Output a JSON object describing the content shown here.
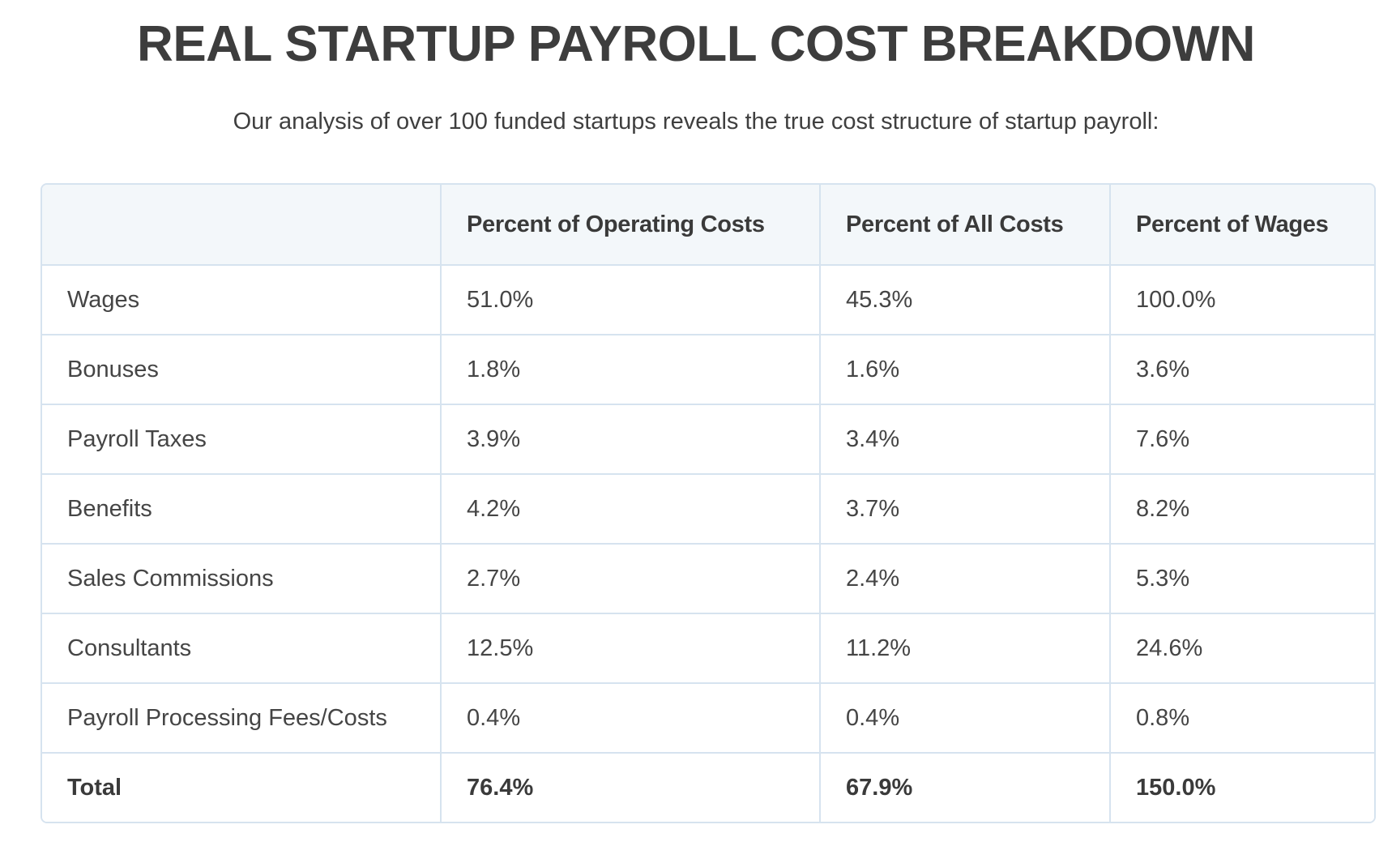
{
  "title": "REAL STARTUP PAYROLL COST BREAKDOWN",
  "subtitle": "Our analysis of over 100 funded startups reveals the true cost structure of startup payroll:",
  "table": {
    "headers": [
      "",
      "Percent of Operating Costs",
      "Percent of All Costs",
      "Percent of Wages"
    ],
    "rows": [
      [
        "Wages",
        "51.0%",
        "45.3%",
        "100.0%"
      ],
      [
        "Bonuses",
        "1.8%",
        "1.6%",
        "3.6%"
      ],
      [
        "Payroll Taxes",
        "3.9%",
        "3.4%",
        "7.6%"
      ],
      [
        "Benefits",
        "4.2%",
        "3.7%",
        "8.2%"
      ],
      [
        "Sales Commissions",
        "2.7%",
        "2.4%",
        "5.3%"
      ],
      [
        "Consultants",
        "12.5%",
        "11.2%",
        "24.6%"
      ],
      [
        "Payroll Processing Fees/Costs",
        "0.4%",
        "0.4%",
        "0.8%"
      ],
      [
        "Total",
        "76.4%",
        "67.9%",
        "150.0%"
      ]
    ]
  }
}
